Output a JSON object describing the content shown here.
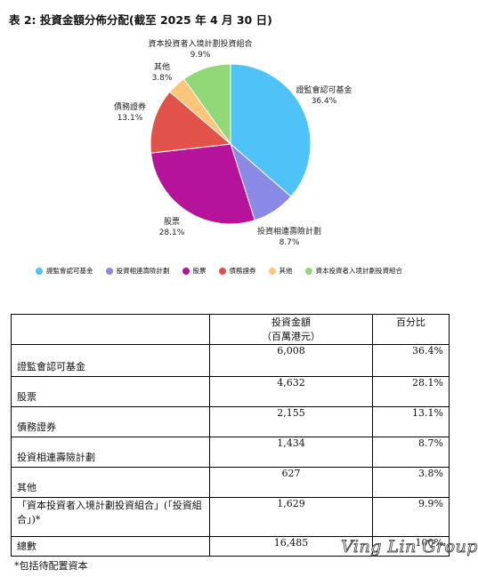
{
  "title": "表 2: 投資金額分佈分配(截至 2025 年 4 月 30 日)",
  "chart_data": {
    "type": "pie",
    "title": "表 2: 投資金額分佈分配(截至 2025 年 4 月 30 日)",
    "legend_position": "bottom",
    "slices": [
      {
        "label": "證監會認可基金",
        "value": 36.4,
        "value_label": "36.4%",
        "color": "#4FC3F7"
      },
      {
        "label": "投資相連壽險計劃",
        "value": 8.7,
        "value_label": "8.7%",
        "color": "#8A8AE6"
      },
      {
        "label": "股票",
        "value": 28.1,
        "value_label": "28.1%",
        "color": "#B5139A"
      },
      {
        "label": "債務證券",
        "value": 13.1,
        "value_label": "13.1%",
        "color": "#E0524A"
      },
      {
        "label": "其他",
        "value": 3.8,
        "value_label": "3.8%",
        "color": "#FFC57A"
      },
      {
        "label": "資本投資者入境計劃投資組合",
        "value": 9.9,
        "value_label": "9.9%",
        "color": "#92D879"
      }
    ]
  },
  "table": {
    "headers": [
      "",
      "投資金額\n（百萬港元）",
      "百分比"
    ],
    "rows": [
      {
        "label": "證監會認可基金",
        "amount": "6,008",
        "percent": "36.4%"
      },
      {
        "label": "股票",
        "amount": "4,632",
        "percent": "28.1%"
      },
      {
        "label": "債務證券",
        "amount": "2,155",
        "percent": "13.1%"
      },
      {
        "label": "投資相連壽險計劃",
        "amount": "1,434",
        "percent": "8.7%"
      },
      {
        "label": "其他",
        "amount": "627",
        "percent": "3.8%"
      },
      {
        "label": "「資本投資者入境計劃投資組合」(「投資組合」)*",
        "amount": "1,629",
        "percent": "9.9%"
      },
      {
        "label": "總數",
        "amount": "16,485",
        "percent": "100%"
      }
    ]
  },
  "footnote": "*包括待配置資本",
  "watermark": "Ving Lin Group"
}
